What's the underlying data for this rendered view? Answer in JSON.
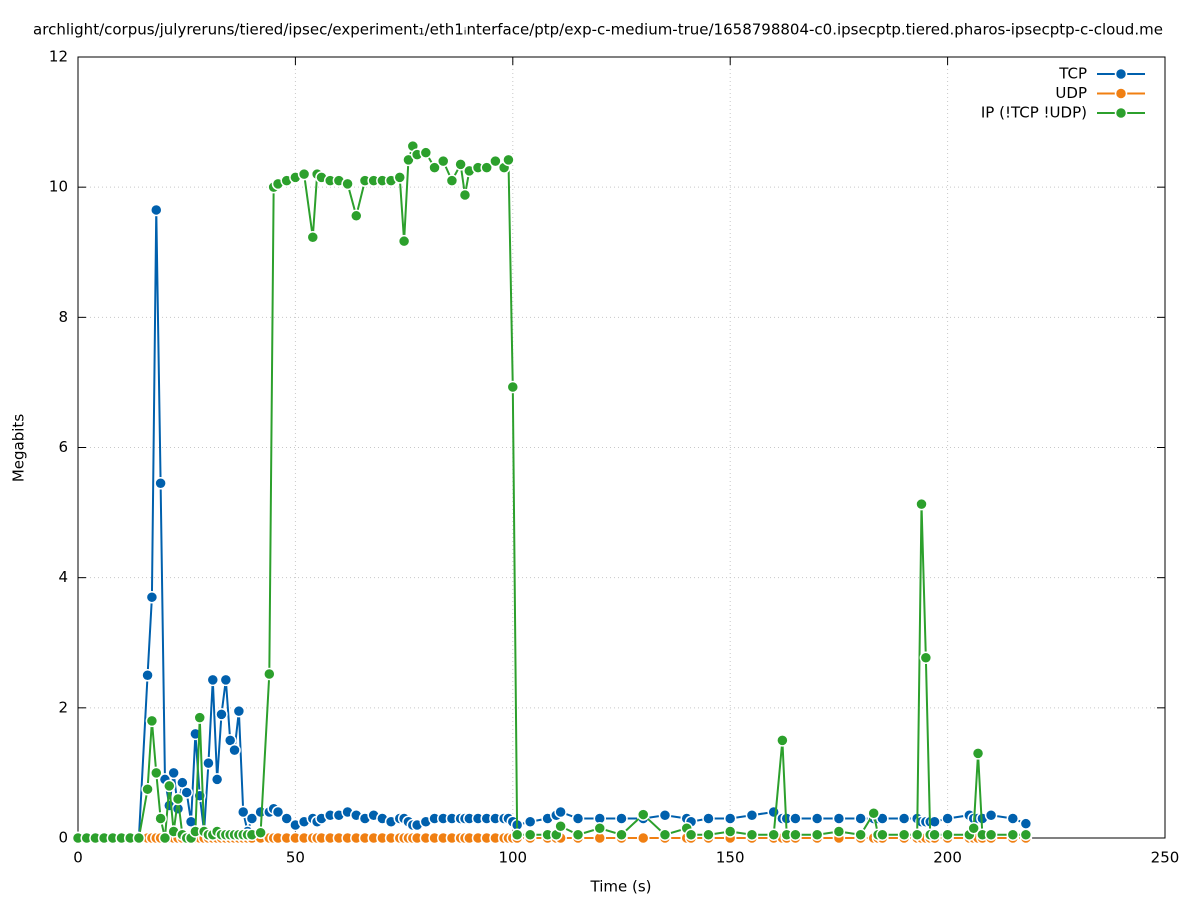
{
  "chart_data": {
    "type": "line",
    "title": "archlight/corpus/julyreruns/tiered/ipsec/experiment₁/eth1ᵢnterface/ptp/exp-c-medium-true/1658798804-c0.ipsecptp.tiered.pharos-ipsecptp-c-cloud.me",
    "x_label": "Time (s)",
    "y_label": "Megabits",
    "x": [
      0,
      2,
      4,
      6,
      8,
      10,
      12,
      14,
      16,
      17,
      18,
      19,
      20,
      21,
      22,
      23,
      24,
      25,
      26,
      27,
      28,
      29,
      30,
      31,
      32,
      33,
      34,
      35,
      36,
      37,
      38,
      39,
      40,
      42,
      44,
      45,
      46,
      48,
      50,
      52,
      54,
      55,
      56,
      58,
      60,
      62,
      64,
      66,
      68,
      70,
      72,
      74,
      75,
      76,
      77,
      78,
      80,
      82,
      84,
      86,
      88,
      89,
      90,
      92,
      94,
      96,
      98,
      99,
      100,
      101,
      104,
      108,
      110,
      111,
      115,
      120,
      125,
      130,
      135,
      140,
      141,
      145,
      150,
      155,
      160,
      162,
      163,
      165,
      170,
      175,
      180,
      183,
      184,
      185,
      190,
      193,
      194,
      195,
      196,
      197,
      200,
      205,
      206,
      207,
      208,
      210,
      215,
      218
    ],
    "series": [
      {
        "name": "TCP",
        "color": "#0060ad",
        "values": [
          0,
          0,
          0,
          0,
          0,
          0,
          0,
          0,
          2.5,
          3.7,
          9.65,
          5.45,
          0.9,
          0.5,
          1.0,
          0.45,
          0.85,
          0.7,
          0.25,
          1.6,
          0.65,
          0.1,
          1.15,
          2.43,
          0.9,
          1.9,
          2.43,
          1.5,
          1.35,
          1.95,
          0.4,
          0.1,
          0.3,
          0.4,
          0.4,
          0.45,
          0.4,
          0.3,
          0.2,
          0.25,
          0.3,
          0.25,
          0.3,
          0.35,
          0.35,
          0.4,
          0.35,
          0.3,
          0.35,
          0.3,
          0.25,
          0.3,
          0.3,
          0.25,
          0.2,
          0.2,
          0.25,
          0.3,
          0.3,
          0.3,
          0.3,
          0.3,
          0.3,
          0.3,
          0.3,
          0.3,
          0.3,
          0.3,
          0.25,
          0.2,
          0.25,
          0.3,
          0.35,
          0.4,
          0.3,
          0.3,
          0.3,
          0.3,
          0.35,
          0.3,
          0.25,
          0.3,
          0.3,
          0.35,
          0.4,
          0.3,
          0.3,
          0.3,
          0.3,
          0.3,
          0.3,
          0.3,
          0.3,
          0.3,
          0.3,
          0.3,
          0.25,
          0.25,
          0.25,
          0.25,
          0.3,
          0.35,
          0.3,
          0.3,
          0.3,
          0.35,
          0.3,
          0.22
        ]
      },
      {
        "name": "UDP",
        "color": "#f07f12",
        "values": [
          0,
          0,
          0,
          0,
          0,
          0,
          0,
          0,
          0,
          0,
          0,
          0,
          0,
          0,
          0,
          0,
          0,
          0,
          0,
          0,
          0,
          0,
          0,
          0,
          0,
          0,
          0,
          0,
          0,
          0,
          0,
          0,
          0,
          0,
          0,
          0,
          0,
          0,
          0,
          0,
          0,
          0,
          0,
          0,
          0,
          0,
          0,
          0,
          0,
          0,
          0,
          0,
          0,
          0,
          0,
          0,
          0,
          0,
          0,
          0,
          0,
          0,
          0,
          0,
          0,
          0,
          0,
          0,
          0,
          0,
          0,
          0,
          0,
          0,
          0,
          0,
          0,
          0,
          0,
          0,
          0,
          0,
          0,
          0,
          0,
          0,
          0,
          0,
          0,
          0,
          0,
          0,
          0,
          0,
          0,
          0,
          0,
          0,
          0,
          0,
          0,
          0,
          0,
          0,
          0,
          0,
          0,
          0
        ]
      },
      {
        "name": "IP (!TCP  !UDP)",
        "color": "#2ca02c",
        "values": [
          0,
          0,
          0,
          0,
          0,
          0,
          0,
          0,
          0.75,
          1.8,
          1.0,
          0.3,
          0.0,
          0.8,
          0.1,
          0.6,
          0.05,
          0.0,
          0.0,
          0.1,
          1.85,
          0.1,
          0.05,
          0.05,
          0.1,
          0.05,
          0.05,
          0.05,
          0.05,
          0.05,
          0.05,
          0.05,
          0.05,
          0.08,
          2.52,
          10.0,
          10.05,
          10.1,
          10.15,
          10.2,
          9.23,
          10.2,
          10.15,
          10.1,
          10.1,
          10.05,
          9.56,
          10.1,
          10.1,
          10.1,
          10.1,
          10.15,
          9.17,
          10.42,
          10.63,
          10.5,
          10.53,
          10.3,
          10.4,
          10.1,
          10.35,
          9.88,
          10.25,
          10.3,
          10.3,
          10.4,
          10.3,
          10.42,
          6.93,
          0.05,
          0.05,
          0.05,
          0.05,
          0.18,
          0.05,
          0.15,
          0.05,
          0.36,
          0.05,
          0.15,
          0.05,
          0.05,
          0.1,
          0.05,
          0.05,
          1.5,
          0.05,
          0.05,
          0.05,
          0.1,
          0.05,
          0.38,
          0.05,
          0.05,
          0.05,
          0.05,
          5.13,
          2.77,
          0.05,
          0.05,
          0.05,
          0.05,
          0.15,
          1.3,
          0.05,
          0.05,
          0.05,
          0.05
        ]
      }
    ],
    "xlim": [
      0,
      250
    ],
    "xticks": [
      0,
      50,
      100,
      150,
      200,
      250
    ],
    "ylim": [
      0,
      12
    ],
    "yticks": [
      0,
      2,
      4,
      6,
      8,
      10,
      12
    ],
    "grid": true,
    "legend": "top-right"
  }
}
